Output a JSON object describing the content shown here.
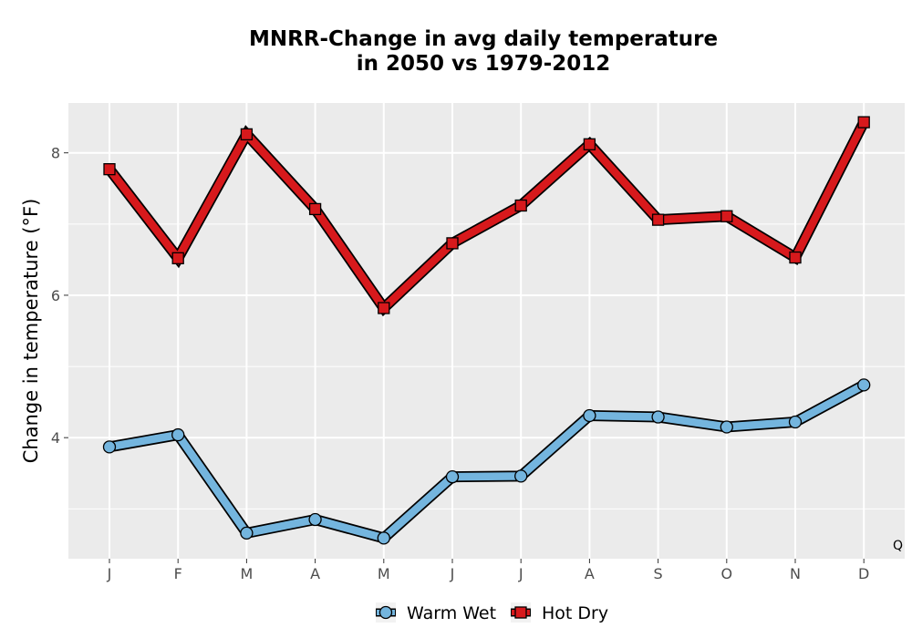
{
  "chart_data": {
    "type": "line",
    "title_line1": "MNRR-Change in avg daily temperature",
    "title_line2": "in 2050 vs 1979-2012",
    "xlabel": "",
    "ylabel": "Change in temperature (°F)",
    "categories": [
      "J",
      "F",
      "M",
      "A",
      "M",
      "J",
      "J",
      "A",
      "S",
      "O",
      "N",
      "D"
    ],
    "yticks": [
      4,
      6,
      8
    ],
    "ylim": [
      2.3,
      8.7
    ],
    "grid": true,
    "legend_position": "bottom",
    "corner_text": "Q",
    "series": [
      {
        "name": "Warm Wet",
        "marker": "circle",
        "color": "#74b5de",
        "values": [
          3.87,
          4.04,
          2.66,
          2.85,
          2.59,
          3.45,
          3.46,
          4.31,
          4.29,
          4.15,
          4.22,
          4.74
        ]
      },
      {
        "name": "Hot Dry",
        "marker": "square",
        "color": "#d7191c",
        "values": [
          7.77,
          6.52,
          8.26,
          7.21,
          5.82,
          6.73,
          7.26,
          8.12,
          7.06,
          7.11,
          6.53,
          8.43
        ]
      }
    ]
  }
}
